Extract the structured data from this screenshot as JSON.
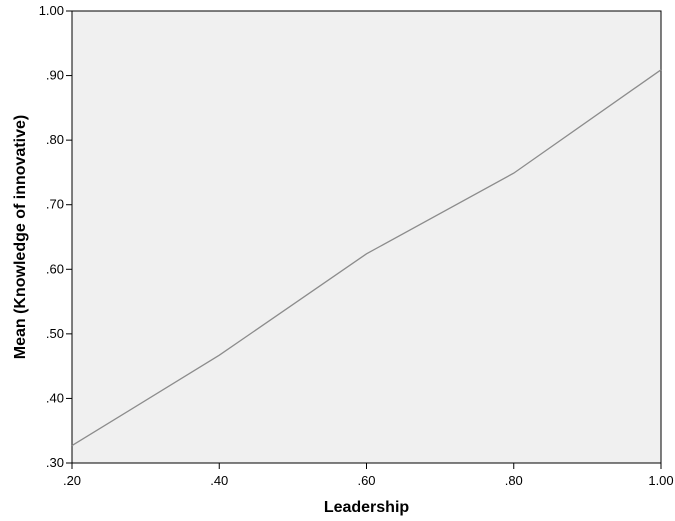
{
  "chart_data": {
    "type": "line",
    "title": "",
    "xlabel": "Leadership",
    "ylabel": "Mean (Knowledge of innovative)",
    "x": [
      0.2,
      0.4,
      0.6,
      0.8,
      1.0
    ],
    "series": [
      {
        "values": [
          0.327,
          0.467,
          0.624,
          0.749,
          0.909
        ]
      }
    ],
    "xlim": [
      0.2,
      1.0
    ],
    "ylim": [
      0.3,
      1.0
    ],
    "xticks": [
      0.2,
      0.4,
      0.6,
      0.8,
      1.0
    ],
    "xtick_labels": [
      ".20",
      ".40",
      ".60",
      ".80",
      "1.00"
    ],
    "yticks": [
      0.3,
      0.4,
      0.5,
      0.6,
      0.7,
      0.8,
      0.9,
      1.0
    ],
    "ytick_labels": [
      ".30",
      ".40",
      ".50",
      ".60",
      ".70",
      ".80",
      ".90",
      "1.00"
    ],
    "grid": false,
    "legend": "none",
    "colors": {
      "plot_background": "#f0f0f0",
      "line": "#8c8c8c",
      "axis": "#000000"
    }
  }
}
